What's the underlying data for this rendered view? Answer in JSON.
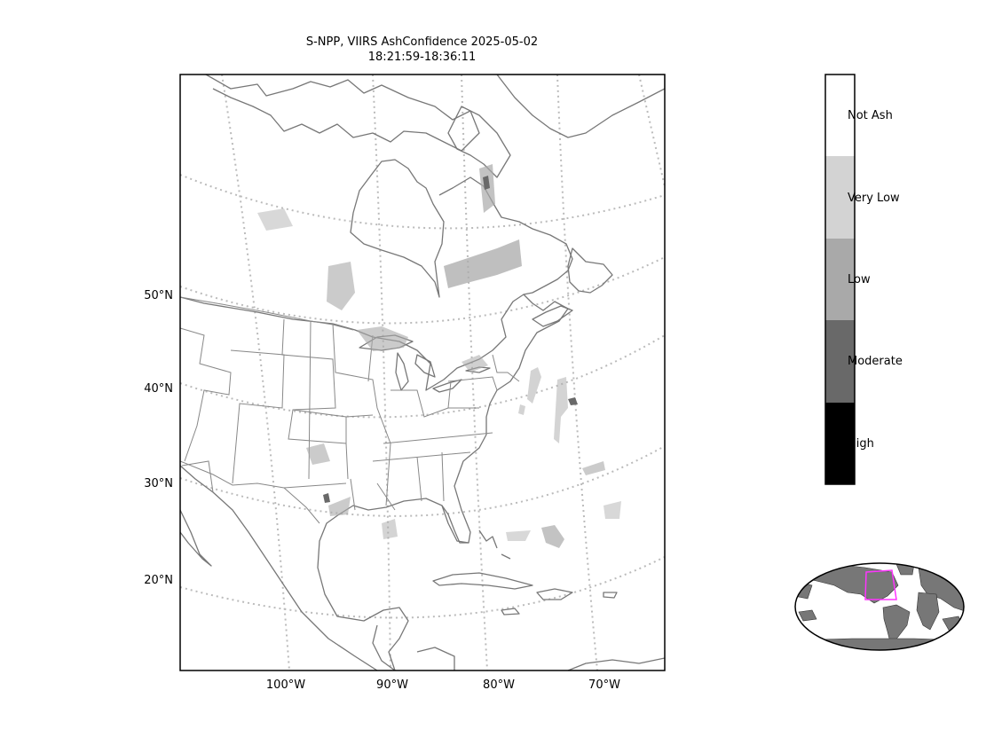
{
  "title": {
    "line1": "S-NPP, VIIRS AshConfidence 2025-05-02",
    "line2": "18:21:59-18:36:11"
  },
  "map": {
    "latitude_labels": [
      "50°N",
      "40°N",
      "30°N",
      "20°N"
    ],
    "longitude_labels": [
      "100°W",
      "90°W",
      "80°W",
      "70°W"
    ],
    "coastline_color": "#777777",
    "graticule_color": "#bbbbbb"
  },
  "legend": {
    "categories": [
      {
        "label": "Not Ash",
        "color": "#ffffff"
      },
      {
        "label": "Very Low",
        "color": "#d3d3d3"
      },
      {
        "label": "Low",
        "color": "#a9a9a9"
      },
      {
        "label": "Moderate",
        "color": "#696969"
      },
      {
        "label": "High",
        "color": "#000000"
      }
    ]
  },
  "inset": {
    "land_color": "#777777",
    "region_box_color": "#ff33ff"
  }
}
